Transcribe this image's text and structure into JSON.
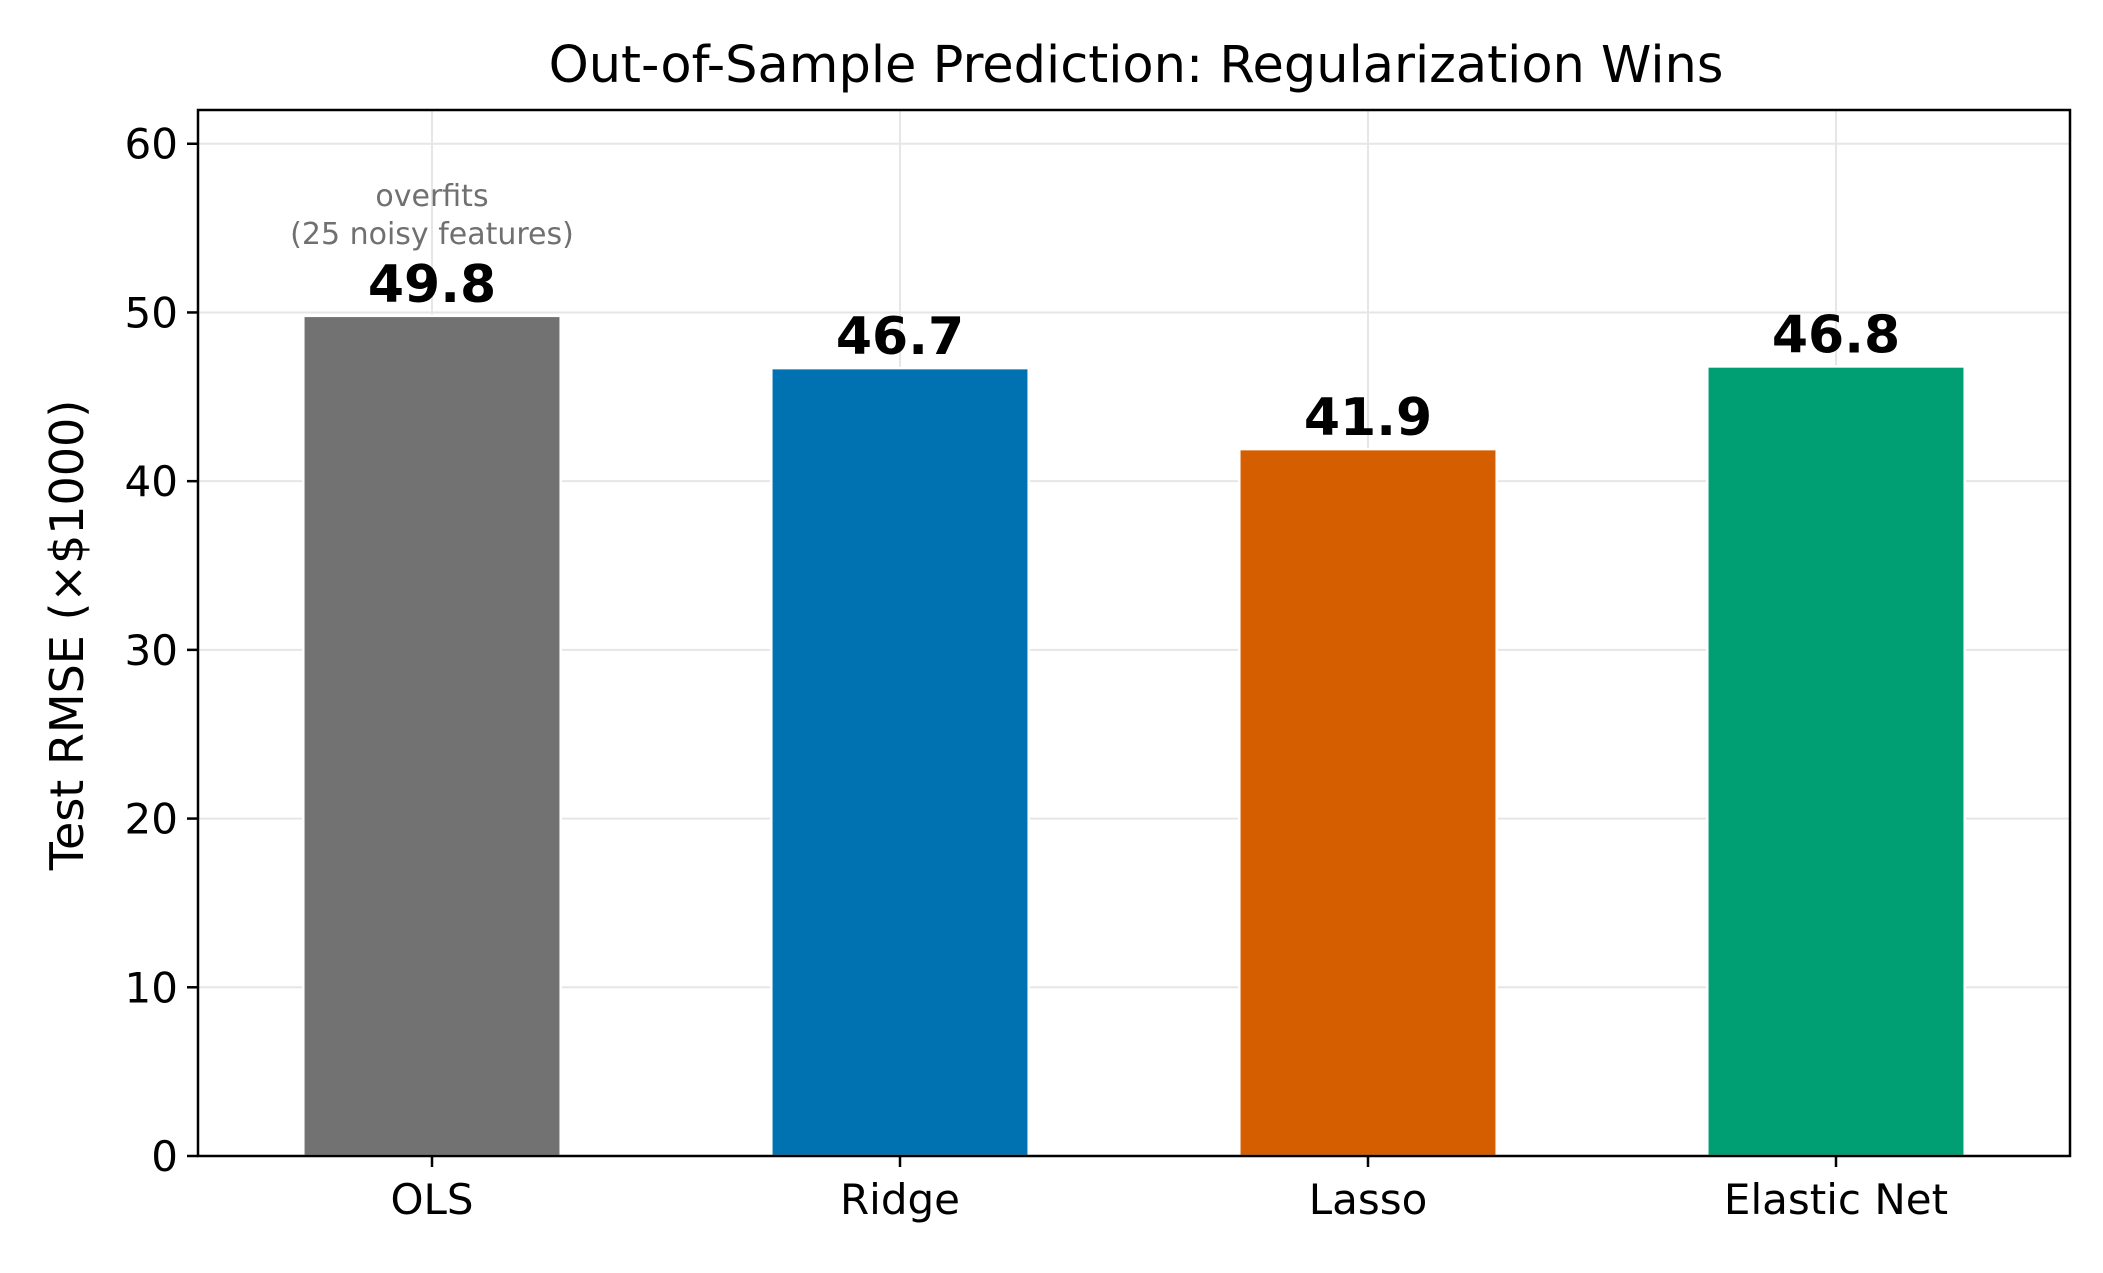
{
  "chart_data": {
    "type": "bar",
    "title": "Out-of-Sample Prediction: Regularization Wins",
    "xlabel": "",
    "ylabel": "Test RMSE (×$1000)",
    "categories": [
      "OLS",
      "Ridge",
      "Lasso",
      "Elastic Net"
    ],
    "values": [
      49.8,
      46.7,
      41.9,
      46.8
    ],
    "value_labels": [
      "49.8",
      "46.7",
      "41.9",
      "46.8"
    ],
    "colors": [
      "#727272",
      "#0072b2",
      "#d55e00",
      "#009e73"
    ],
    "ylim": [
      0,
      62
    ],
    "yticks": [
      0,
      10,
      20,
      30,
      40,
      50,
      60
    ],
    "grid": true,
    "legend": "none",
    "annotation": {
      "category": "OLS",
      "lines": [
        "overfits",
        "(25 noisy features)"
      ],
      "color": "#707070"
    }
  }
}
